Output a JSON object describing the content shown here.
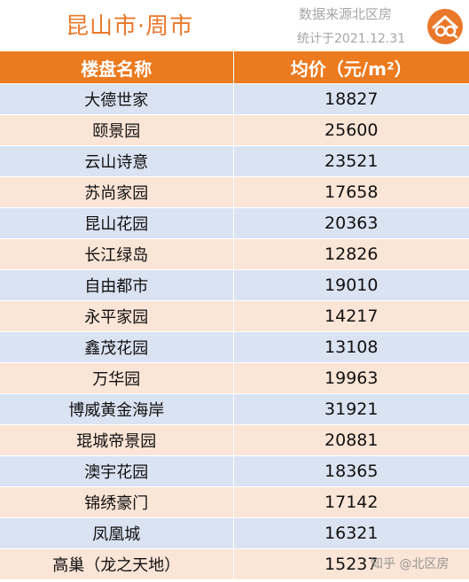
{
  "header": {
    "title": "昆山市·周市",
    "source": "数据来源北区房",
    "date": "统计于2021.12.31"
  },
  "table": {
    "columns": [
      "楼盘名称",
      "均价（元/m²）"
    ],
    "rows": [
      [
        "大德世家",
        "18827"
      ],
      [
        "颐景园",
        "25600"
      ],
      [
        "云山诗意",
        "23521"
      ],
      [
        "苏尚家园",
        "17658"
      ],
      [
        "昆山花园",
        "20363"
      ],
      [
        "长江绿岛",
        "12826"
      ],
      [
        "自由都市",
        "19010"
      ],
      [
        "永平家园",
        "14217"
      ],
      [
        "鑫茂花园",
        "13108"
      ],
      [
        "万华园",
        "19963"
      ],
      [
        "博威黄金海岸",
        "31921"
      ],
      [
        "琨城帝景园",
        "20881"
      ],
      [
        "澳宇花园",
        "18365"
      ],
      [
        "锦绣豪门",
        "17142"
      ],
      [
        "凤凰城",
        "16321"
      ],
      [
        "高巢（龙之天地）",
        "15237"
      ]
    ]
  },
  "watermark": "知乎 @北区房",
  "colors": {
    "accent": "#ec7a1e",
    "row_blue": "#dae3f2",
    "row_peach": "#fbe5d6"
  },
  "icons": {
    "logo": "house-logo-icon"
  }
}
